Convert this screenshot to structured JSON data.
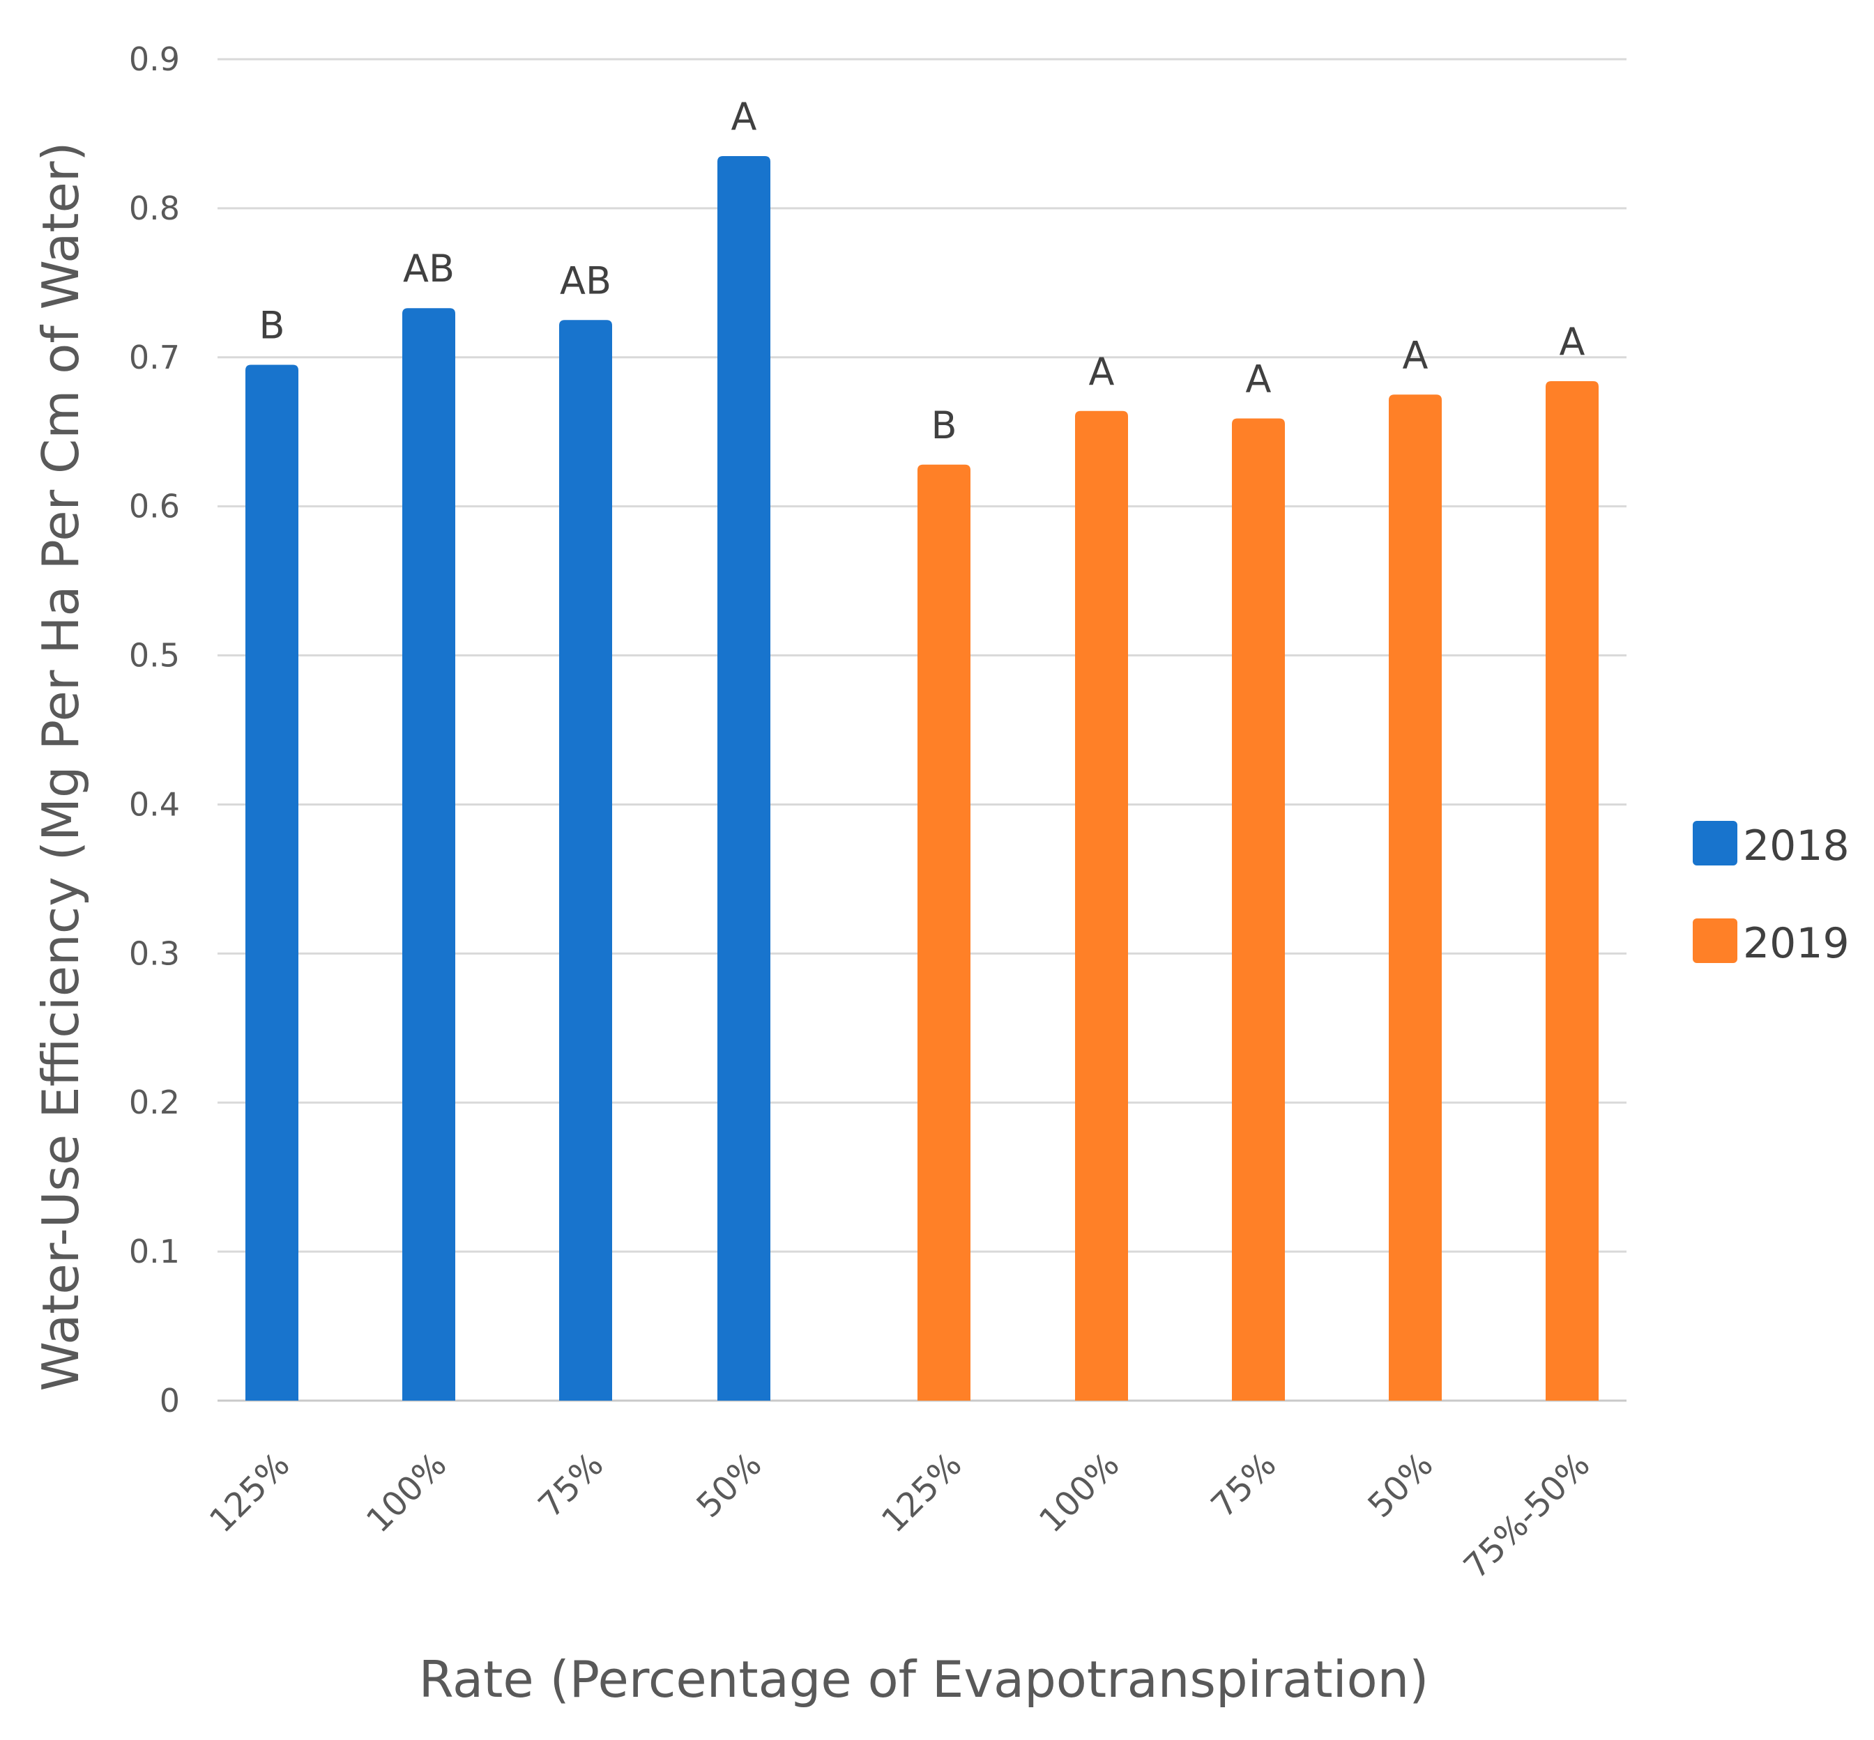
{
  "chart_data": {
    "type": "bar",
    "title": "",
    "xlabel": "Rate (Percentage of Evapotranspiration)",
    "ylabel": "Water-Use Efficiency (Mg Per Ha Per Cm of Water)",
    "ylim": [
      0,
      0.9
    ],
    "yticks": [
      "0",
      "0.1",
      "0.2",
      "0.3",
      "0.4",
      "0.5",
      "0.6",
      "0.7",
      "0.8",
      "0.9"
    ],
    "grid": true,
    "legend_position": "right",
    "series": [
      {
        "name": "2018",
        "color": "#1874CD",
        "categories": [
          "125%",
          "100%",
          "75%",
          "50%"
        ],
        "values": [
          0.695,
          0.733,
          0.725,
          0.835
        ],
        "labels": [
          "B",
          "AB",
          "AB",
          "A"
        ]
      },
      {
        "name": "2019",
        "color": "#FF8027",
        "categories": [
          "125%",
          "100%",
          "75%",
          "50%",
          "75%-50%"
        ],
        "values": [
          0.628,
          0.664,
          0.659,
          0.675,
          0.684
        ],
        "labels": [
          "B",
          "A",
          "A",
          "A",
          "A"
        ]
      }
    ]
  }
}
